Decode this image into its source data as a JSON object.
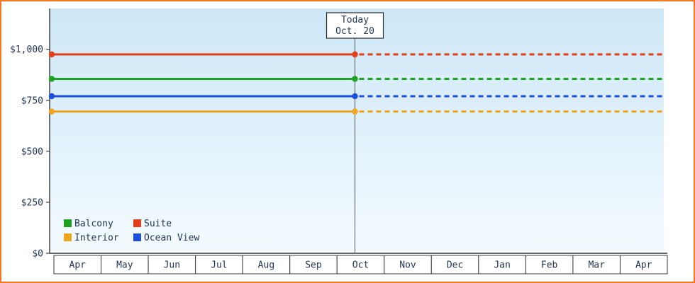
{
  "palette": {
    "frame_border": "#f4791f",
    "text": "#223655",
    "axis": "#3a3a3a",
    "plot_bg_top": "#cde7f7",
    "plot_bg_bottom": "#f4fbff",
    "month_cell_bg": "#ffffff",
    "annotation_bg": "#ffffff",
    "annotation_border": "#2b2b2b",
    "today_line": "#555555"
  },
  "chart_data": {
    "type": "line",
    "title": "",
    "x_months": [
      "Apr",
      "May",
      "Jun",
      "Jul",
      "Aug",
      "Sep",
      "Oct",
      "Nov",
      "Dec",
      "Jan",
      "Feb",
      "Mar",
      "Apr"
    ],
    "y_ticks": [
      {
        "value": 0,
        "label": "$0"
      },
      {
        "value": 250,
        "label": "$250"
      },
      {
        "value": 500,
        "label": "$500"
      },
      {
        "value": 750,
        "label": "$750"
      },
      {
        "value": 1000,
        "label": "$1,000"
      }
    ],
    "ylim": [
      0,
      1200
    ],
    "series": [
      {
        "name": "Suite",
        "color": "#e43d17",
        "value": 975,
        "style_before_today": "solid",
        "style_after_today": "dashed"
      },
      {
        "name": "Balcony",
        "color": "#1fa21f",
        "value": 855,
        "style_before_today": "solid",
        "style_after_today": "dashed"
      },
      {
        "name": "Ocean View",
        "color": "#1d4fdd",
        "value": 770,
        "style_before_today": "solid",
        "style_after_today": "dashed"
      },
      {
        "name": "Interior",
        "color": "#f0a51e",
        "value": 695,
        "style_before_today": "solid",
        "style_after_today": "dashed"
      }
    ],
    "today": {
      "title": "Today",
      "date": "Oct. 20",
      "month_index": 6
    },
    "legend": {
      "position": "bottom-left",
      "entries": [
        "Balcony",
        "Suite",
        "Interior",
        "Ocean View"
      ]
    }
  }
}
